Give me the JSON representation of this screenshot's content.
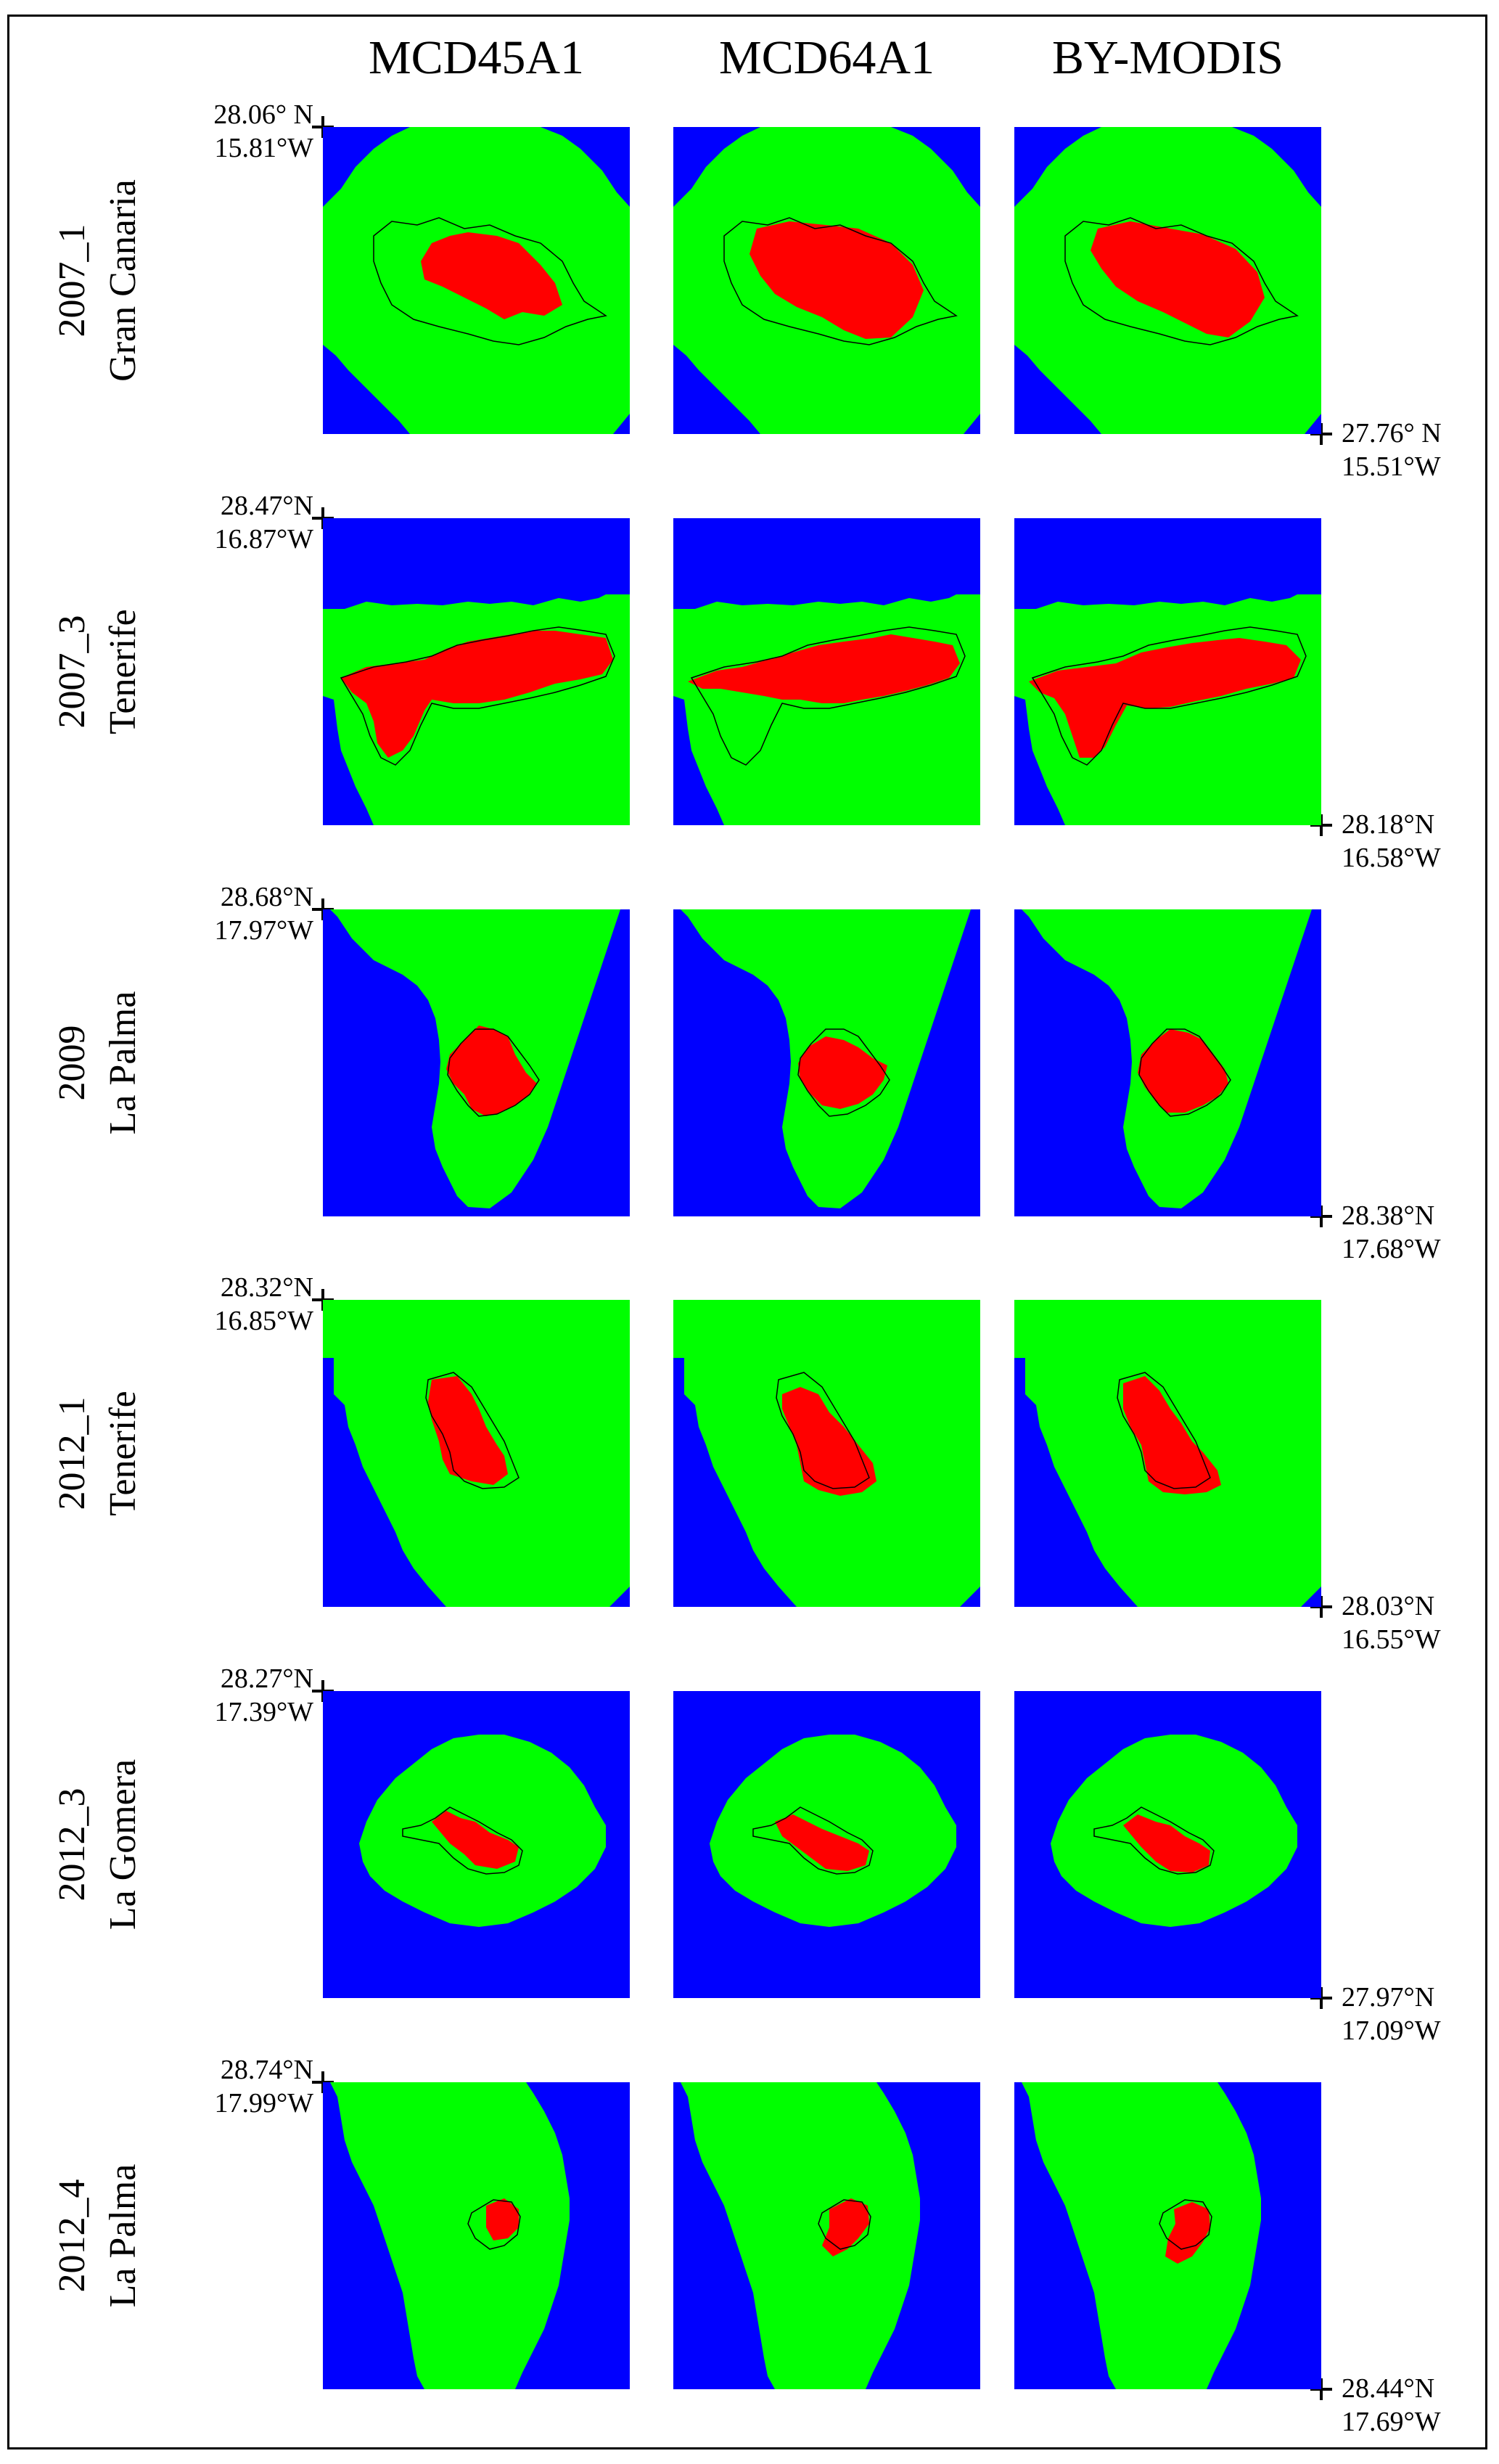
{
  "columns": [
    "MCD45A1",
    "MCD64A1",
    "BY-MODIS"
  ],
  "colors": {
    "water": "#0000ff",
    "land": "#00ff00",
    "burned": "#ff0000",
    "perimeter": "#000000"
  },
  "rows": [
    {
      "id": "2007_1",
      "name": "Gran Canaria",
      "tl": {
        "lat": "28.06° N",
        "lon": "15.81°W"
      },
      "br": {
        "lat": "27.76° N",
        "lon": "15.51°W"
      }
    },
    {
      "id": "2007_3",
      "name": "Tenerife",
      "tl": {
        "lat": "28.47°N",
        "lon": "16.87°W"
      },
      "br": {
        "lat": "28.18°N",
        "lon": "16.58°W"
      }
    },
    {
      "id": "2009",
      "name": "La Palma",
      "tl": {
        "lat": "28.68°N",
        "lon": "17.97°W"
      },
      "br": {
        "lat": "28.38°N",
        "lon": "17.68°W"
      }
    },
    {
      "id": "2012_1",
      "name": "Tenerife",
      "tl": {
        "lat": "28.32°N",
        "lon": "16.85°W"
      },
      "br": {
        "lat": "28.03°N",
        "lon": "16.55°W"
      }
    },
    {
      "id": "2012_3",
      "name": "La Gomera",
      "tl": {
        "lat": "28.27°N",
        "lon": "17.39°W"
      },
      "br": {
        "lat": "27.97°N",
        "lon": "17.09°W"
      }
    },
    {
      "id": "2012_4",
      "name": "La Palma",
      "tl": {
        "lat": "28.74°N",
        "lon": "17.99°W"
      },
      "br": {
        "lat": "28.44°N",
        "lon": "17.69°W"
      }
    }
  ]
}
